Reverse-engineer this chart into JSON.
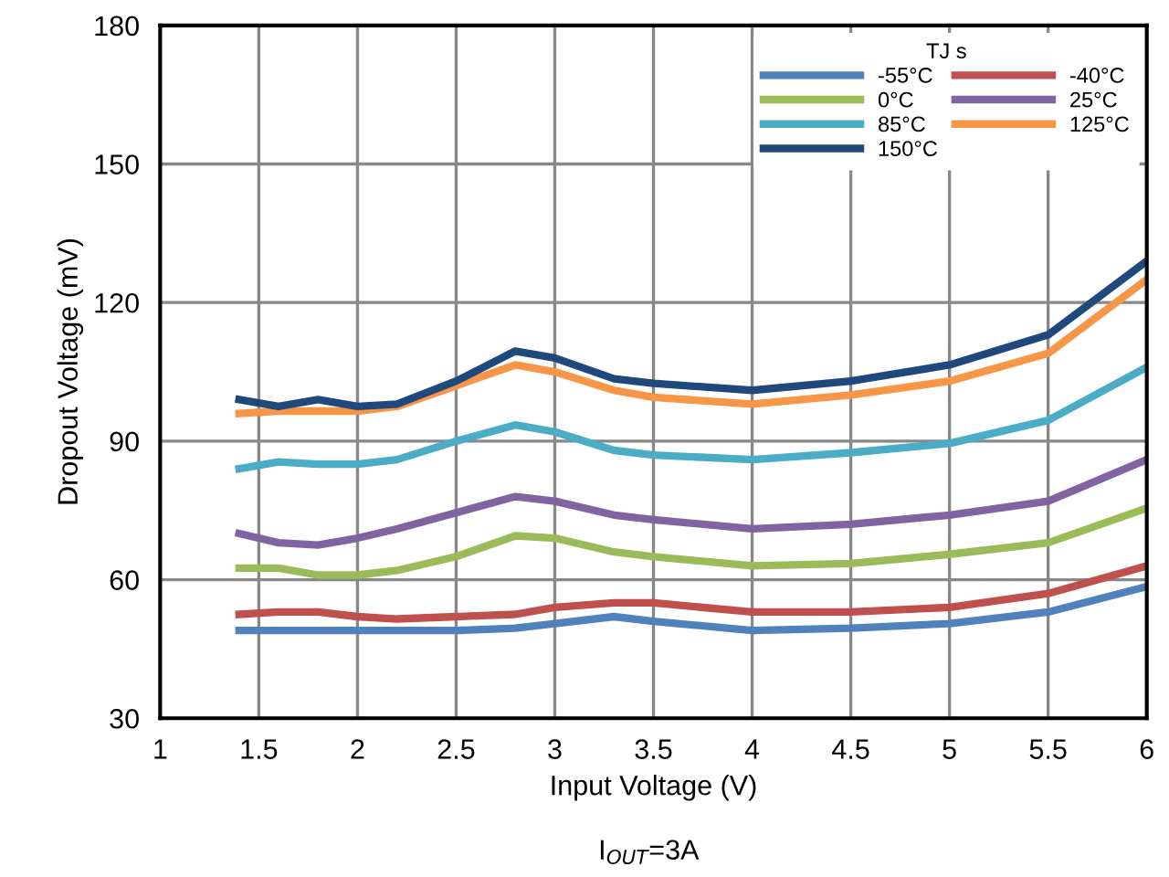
{
  "chart_data": {
    "type": "line",
    "xlabel": "Input Voltage (V)",
    "ylabel": "Dropout Voltage (mV)",
    "legend_title": "TJ s",
    "annotations": [
      "I$_{OUT}$=3A"
    ],
    "x": [
      1.4,
      1.6,
      1.8,
      2,
      2.2,
      2.5,
      2.8,
      3,
      3.3,
      3.5,
      4,
      4.5,
      5,
      5.5,
      6
    ],
    "series": [
      {
        "name": "-55°C",
        "color": "#4f81bd",
        "values": [
          49,
          49,
          49,
          49,
          49,
          49,
          49.5,
          50.5,
          52,
          51,
          49,
          49.5,
          50.5,
          53,
          58.5
        ]
      },
      {
        "name": "-40°C",
        "color": "#c0504d",
        "values": [
          52.5,
          53,
          53,
          52,
          51.5,
          52,
          52.5,
          54,
          55,
          55,
          53,
          53,
          54,
          57,
          63
        ]
      },
      {
        "name": "0°C",
        "color": "#9bbb59",
        "values": [
          62.5,
          62.5,
          61,
          61,
          62,
          65,
          69.5,
          69,
          66,
          65,
          63,
          63.5,
          65.5,
          68,
          75.5
        ]
      },
      {
        "name": "25°C",
        "color": "#8064a2",
        "values": [
          70,
          68,
          67.5,
          69,
          71,
          74.5,
          78,
          77,
          74,
          73,
          71,
          72,
          74,
          77,
          86
        ]
      },
      {
        "name": "85°C",
        "color": "#4bacc6",
        "values": [
          84,
          85.5,
          85,
          85,
          86,
          90,
          93.5,
          92,
          88,
          87,
          86,
          87.5,
          89.5,
          94.5,
          106
        ]
      },
      {
        "name": "125°C",
        "color": "#f79646",
        "values": [
          96,
          96.5,
          96.5,
          96.5,
          97.5,
          102,
          106.5,
          105,
          101,
          99.5,
          98,
          100,
          103,
          109,
          125
        ]
      },
      {
        "name": "150°C",
        "color": "#1f497d",
        "values": [
          99,
          97.5,
          99,
          97.5,
          98,
          103,
          109.5,
          108,
          103.5,
          102.5,
          101,
          103,
          106.5,
          113,
          129
        ]
      }
    ],
    "xlim": [
      1,
      6
    ],
    "xticks": [
      1,
      1.5,
      2,
      2.5,
      3,
      3.5,
      4,
      4.5,
      5,
      5.5,
      6
    ],
    "ylim": [
      30,
      180
    ],
    "yticks": [
      30,
      60,
      90,
      120,
      150,
      180
    ],
    "grid": true,
    "legend": "top right",
    "marker": "none",
    "line_style": "solid"
  }
}
